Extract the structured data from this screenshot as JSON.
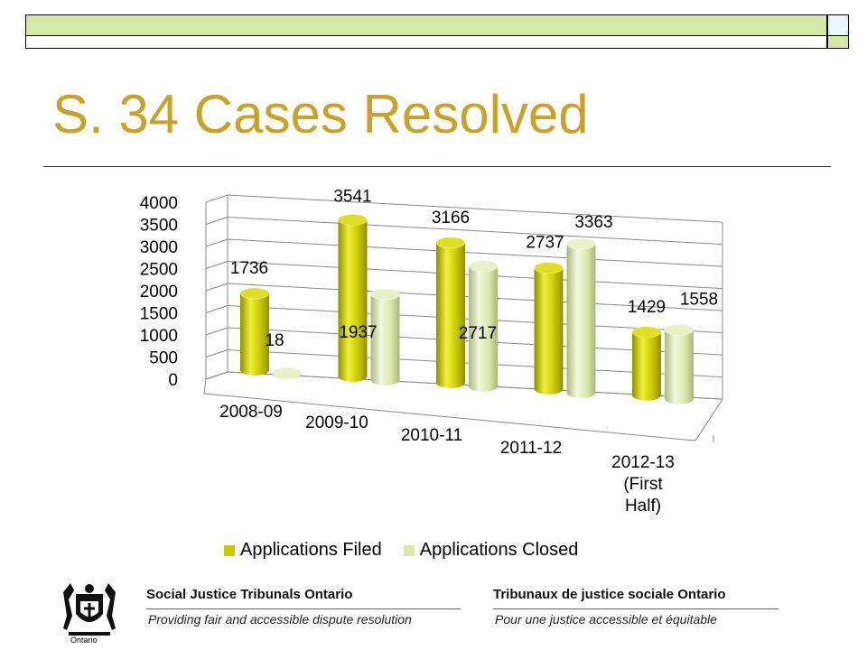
{
  "slide": {
    "title": "S. 34 Cases Resolved"
  },
  "colors": {
    "title": "#c9a227",
    "series_filed": "#c8c800",
    "series_closed": "#dbe8a8",
    "deco_band_top": "#d6e7a6",
    "deco_band_side": "#c7dcf4"
  },
  "chart_data": {
    "type": "bar",
    "style": "3d-cylinder",
    "categories": [
      "2008-09",
      "2009-10",
      "2010-11",
      "2011-12",
      "2012-13 (First Half)"
    ],
    "series": [
      {
        "name": "Applications Filed",
        "values": [
          1736,
          3541,
          3166,
          2737,
          1429
        ]
      },
      {
        "name": "Applications Closed",
        "values": [
          18,
          1937,
          2717,
          3363,
          1558
        ]
      }
    ],
    "y_ticks": [
      "0",
      "500",
      "1000",
      "1500",
      "2000",
      "2500",
      "3000",
      "3500",
      "4000"
    ],
    "ylim": [
      0,
      4000
    ],
    "grid": true,
    "legend_position": "bottom"
  },
  "footer": {
    "org_en": "Social Justice Tribunals Ontario",
    "tagline_en": "Providing fair and accessible dispute resolution",
    "org_fr": "Tribunaux de justice sociale Ontario",
    "tagline_fr": "Pour une justice accessible et équitable",
    "logo_text": "Ontario",
    "logo_icon": "ontario-coat-of-arms-icon"
  }
}
